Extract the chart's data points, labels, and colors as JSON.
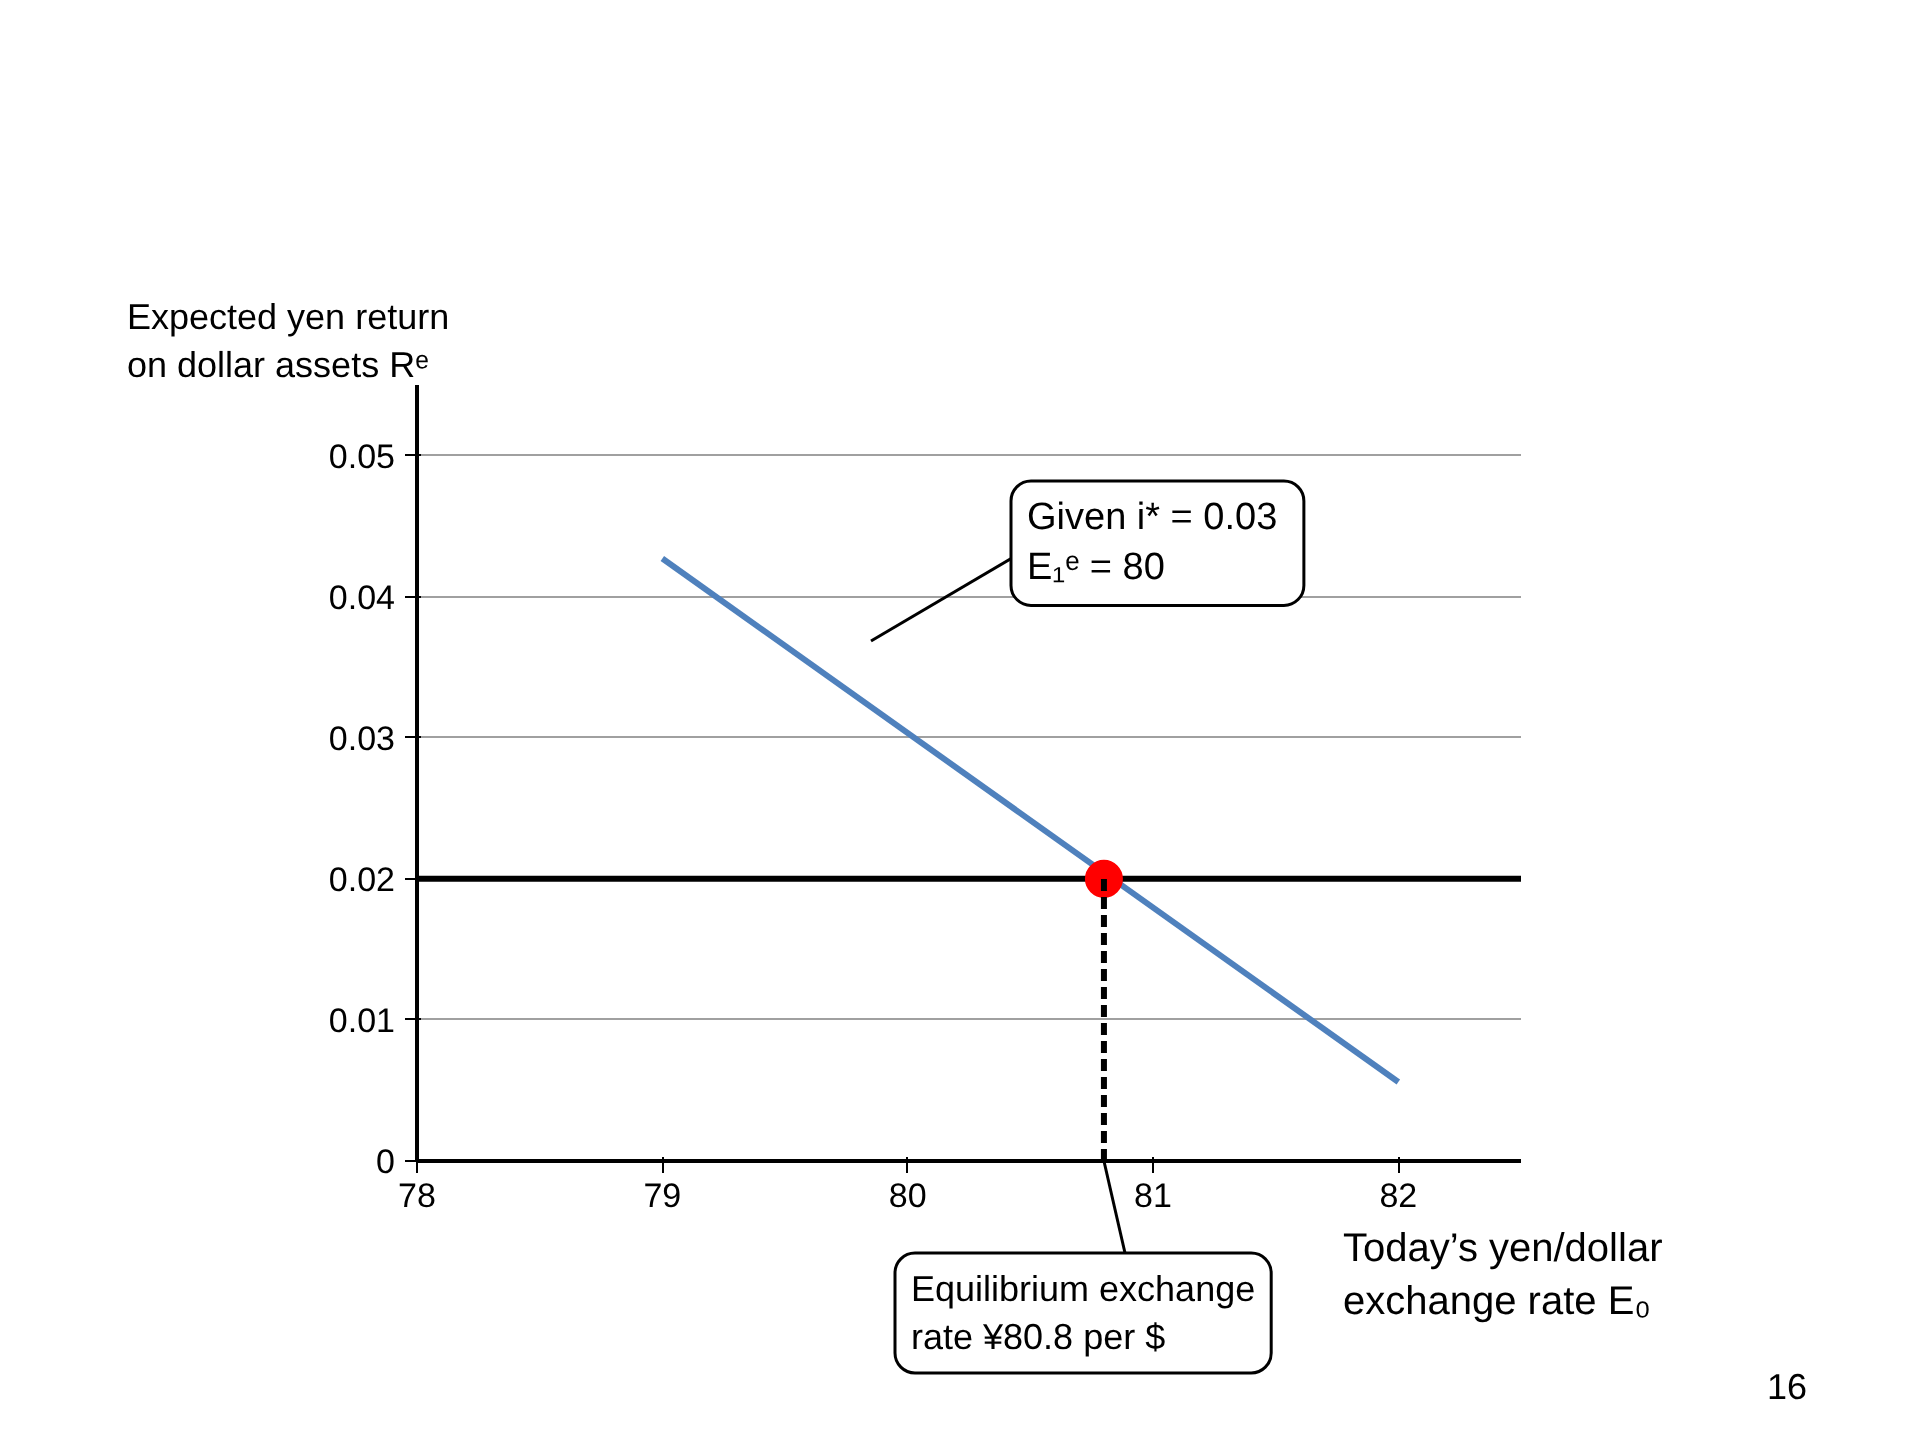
{
  "chart_data": {
    "type": "line",
    "xlabel": "Today’s yen/dollar\nexchange rate  E₀",
    "ylabel": "Expected yen return\non dollar assets  Rᵉ",
    "xlim": [
      78,
      82.5
    ],
    "ylim": [
      0,
      0.055
    ],
    "xticks": [
      78,
      79,
      80,
      81,
      82
    ],
    "yticks": [
      0,
      0.01,
      0.02,
      0.03,
      0.04,
      0.05
    ],
    "grid": "y",
    "series": [
      {
        "color": "#4f81bd",
        "x": [
          79,
          82
        ],
        "values": [
          0.0427,
          0.0056
        ]
      },
      {
        "color": "#000000",
        "x": [
          78,
          82.5
        ],
        "values": [
          0.02,
          0.02
        ]
      },
      {
        "type": "scatter",
        "marker": "circle",
        "color": "#ff0000",
        "x": [
          80.8
        ],
        "values": [
          0.02
        ]
      },
      {
        "color": "#000000",
        "line_style": "dashed",
        "x": [
          80.8,
          80.8
        ],
        "values": [
          0,
          0.02
        ]
      }
    ],
    "annotations": [
      "Given  i* = 0.03\nE₁ᵉ = 80",
      {
        "text": "Equilibrium exchange\nrate  ¥80.8 per $",
        "x": 80.8,
        "y": 0
      },
      "16"
    ]
  }
}
